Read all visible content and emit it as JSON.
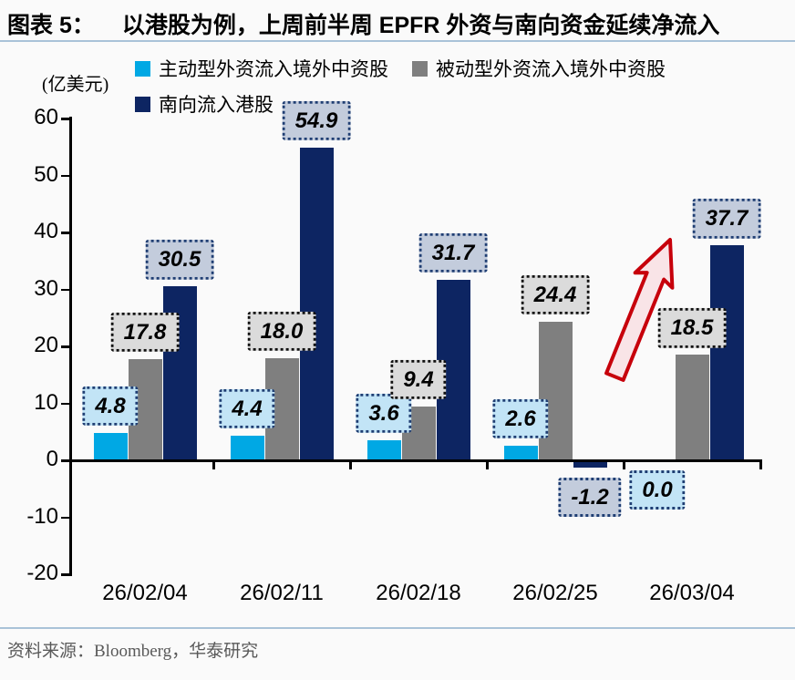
{
  "header": {
    "figure_label": "图表 5：",
    "title": "以港股为例，上周前半周 EPFR 外资与南向资金延续净流入"
  },
  "chart_data": {
    "type": "bar",
    "title": "以港股为例，上周前半周 EPFR 外资与南向资金延续净流入",
    "unit_label": "(亿美元)",
    "categories": [
      "26/02/04",
      "26/02/11",
      "26/02/18",
      "26/02/25",
      "26/03/04"
    ],
    "series": [
      {
        "name": "主动型外资流入境外中资股",
        "color": "#00A8E4",
        "label_bg": "#C2E4F6",
        "label_border": "#1F3E73",
        "values": [
          4.8,
          4.4,
          3.6,
          2.6,
          0.0
        ]
      },
      {
        "name": "被动型外资流入境外中资股",
        "color": "#7F7F7F",
        "label_bg": "#DBDBDB",
        "label_border": "#111111",
        "values": [
          17.8,
          18.0,
          9.4,
          24.4,
          18.5
        ]
      },
      {
        "name": "南向流入港股",
        "color": "#0D2562",
        "label_bg": "#C3CCDC",
        "label_border": "#1F3E73",
        "values": [
          30.5,
          54.9,
          31.7,
          -1.2,
          37.7
        ]
      }
    ],
    "ylim": [
      -20,
      60
    ],
    "ytick_step": 10,
    "yticks": [
      60,
      50,
      40,
      30,
      20,
      10,
      0,
      -10,
      -20
    ],
    "grid": false,
    "legend_position": "top",
    "annotation": {
      "type": "up-arrow",
      "stroke": "#C7000B",
      "fill": "#F9E4E7",
      "points_to_value": 37.7,
      "points_to_category": "26/03/04"
    }
  },
  "footer": {
    "source": "资料来源：Bloomberg，华泰研究"
  }
}
